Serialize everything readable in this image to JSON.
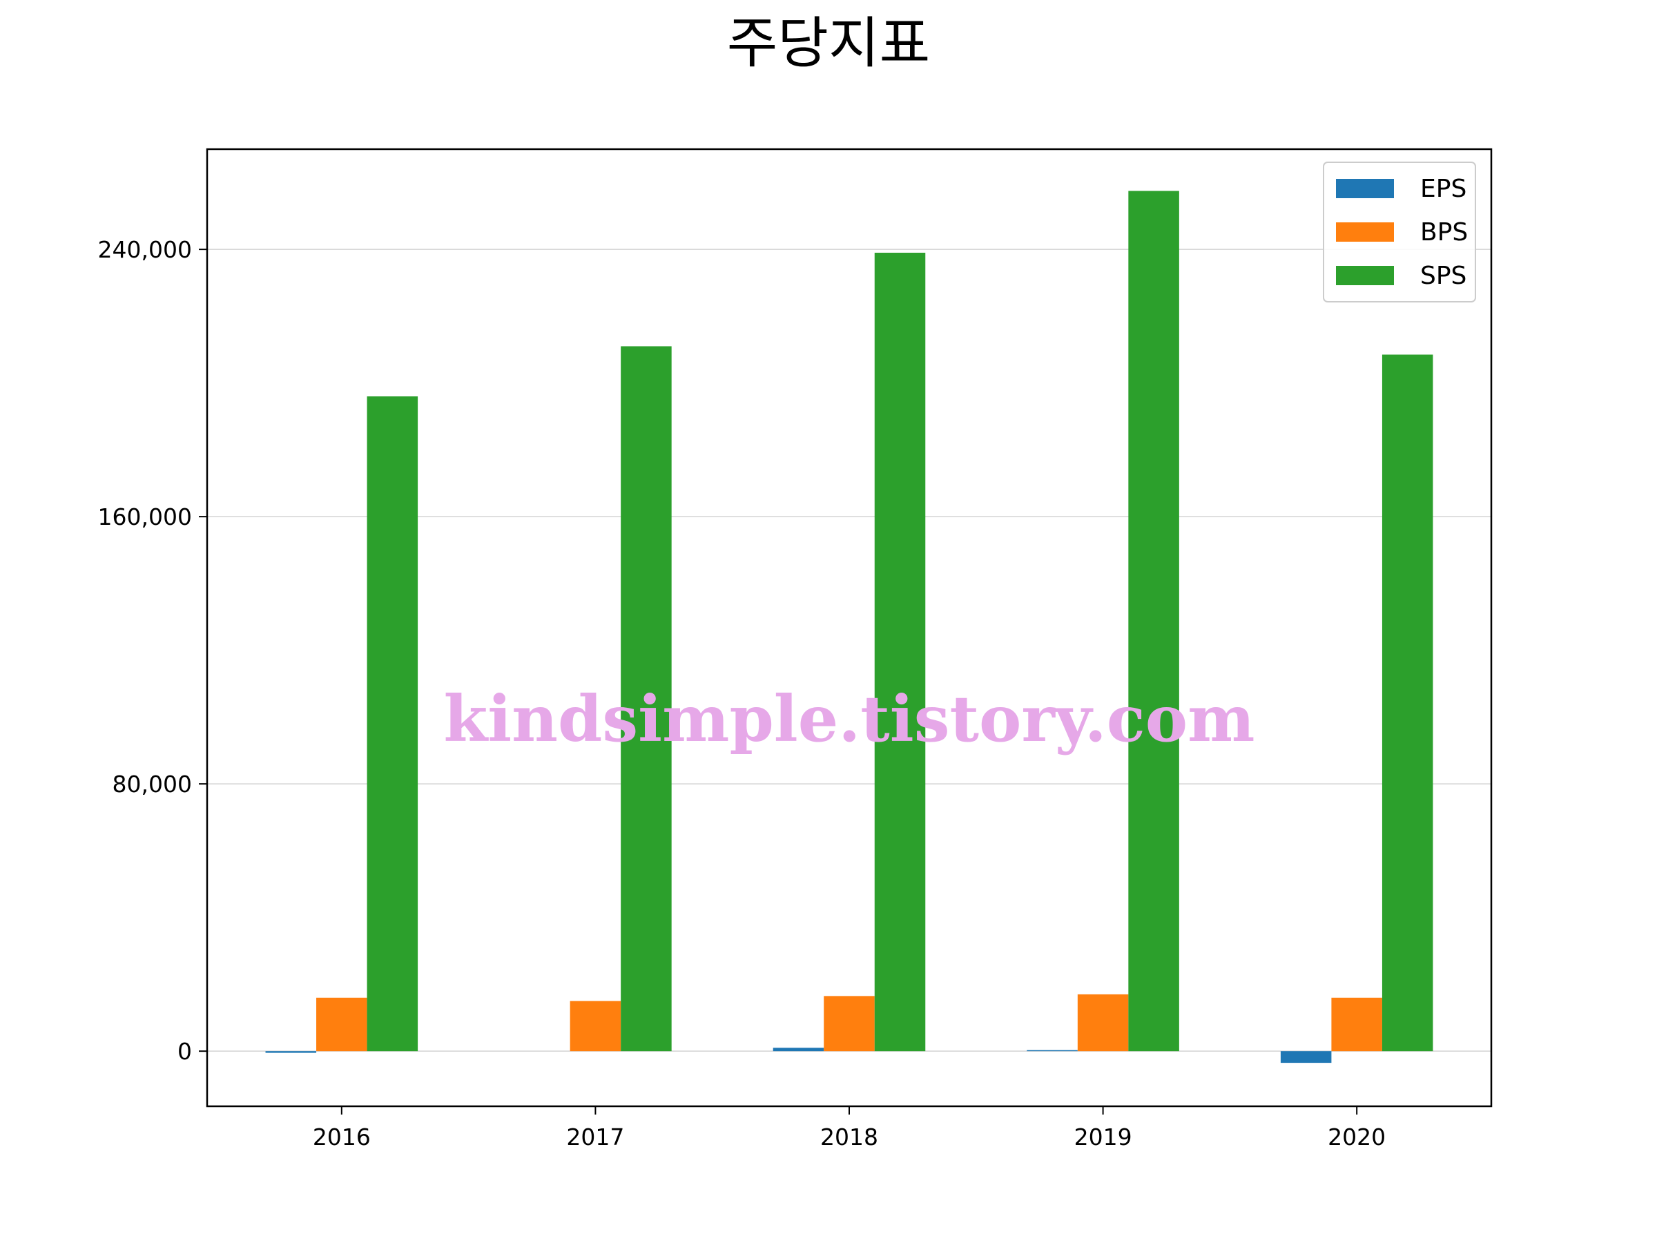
{
  "chart_data": {
    "type": "bar",
    "title": "주당지표",
    "categories": [
      "2016",
      "2017",
      "2018",
      "2019",
      "2020"
    ],
    "series": [
      {
        "name": "EPS",
        "color": "#1f77b4",
        "values": [
          -500,
          0,
          1000,
          300,
          -3500
        ]
      },
      {
        "name": "BPS",
        "color": "#ff7f0e",
        "values": [
          16000,
          15000,
          16500,
          17000,
          16000
        ]
      },
      {
        "name": "SPS",
        "color": "#2ca02c",
        "values": [
          196000,
          211000,
          239000,
          257500,
          208500
        ]
      }
    ],
    "y_ticks": [
      0,
      80000,
      160000,
      240000
    ],
    "y_tick_labels": [
      "0",
      "80,000",
      "160,000",
      "240,000"
    ],
    "ylim": [
      -16500,
      270000
    ],
    "grid": "horizontal",
    "legend_position": "top-right"
  },
  "watermark": "kindsimple.tistory.com"
}
